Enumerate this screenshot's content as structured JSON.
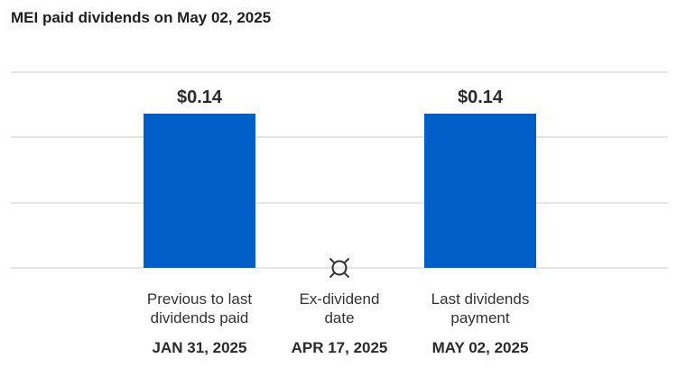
{
  "chart_data": {
    "type": "bar",
    "title": "MEI paid dividends on May 02, 2025",
    "xlabel": "",
    "ylabel": "",
    "ylim": [
      0,
      0.14
    ],
    "grid": true,
    "legend": "none",
    "categories": [
      {
        "label_lines": [
          "Previous to last",
          "dividends paid"
        ],
        "date": "JAN 31, 2025",
        "value": 0.14,
        "value_label": "$0.14"
      },
      {
        "label_lines": [
          "Ex-dividend",
          "date"
        ],
        "date": "APR 17, 2025",
        "value": null,
        "value_label": "",
        "icon": "ex-dividend-icon"
      },
      {
        "label_lines": [
          "Last dividends",
          "payment"
        ],
        "date": "MAY 02, 2025",
        "value": 0.14,
        "value_label": "$0.14"
      }
    ],
    "colors": {
      "bar": "#005ec8",
      "grid": "#e6e6e6",
      "icon": "#333333"
    }
  }
}
